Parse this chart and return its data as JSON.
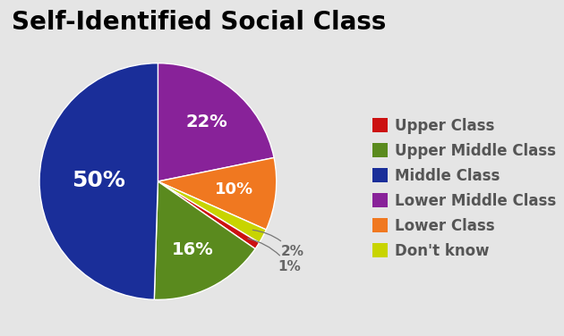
{
  "title": "Self-Identified Social Class",
  "title_fontsize": 20,
  "title_fontweight": "bold",
  "categories": [
    "Upper Class",
    "Upper Middle Class",
    "Middle Class",
    "Lower Middle Class",
    "Lower Class",
    "Don't know"
  ],
  "legend_colors": [
    "#cc1111",
    "#5a8a1e",
    "#1a2e99",
    "#882299",
    "#f07820",
    "#c8d400"
  ],
  "pie_order": [
    "Lower Middle Class",
    "Lower Class",
    "Don't know",
    "Upper Class",
    "Upper Middle Class",
    "Middle Class"
  ],
  "pie_values": [
    22,
    10,
    2,
    1,
    16,
    50
  ],
  "pie_colors": [
    "#882299",
    "#f07820",
    "#c8d400",
    "#cc1111",
    "#5a8a1e",
    "#1a2e99"
  ],
  "startangle": 90,
  "counterclock": false,
  "background_color": "#e5e5e5",
  "legend_text_color": "#555555",
  "legend_fontsize": 12,
  "pie_labels": [
    {
      "text": "22%",
      "inside": true,
      "r": 0.65,
      "color": "white",
      "fontsize": 14,
      "fontweight": "bold"
    },
    {
      "text": "10%",
      "inside": true,
      "r": 0.65,
      "color": "white",
      "fontsize": 13,
      "fontweight": "bold"
    },
    {
      "text": "2%",
      "inside": false,
      "r": 1.28,
      "color": "#666666",
      "fontsize": 11,
      "fontweight": "bold"
    },
    {
      "text": "1%",
      "inside": false,
      "r": 1.32,
      "color": "#666666",
      "fontsize": 11,
      "fontweight": "bold"
    },
    {
      "text": "16%",
      "inside": true,
      "r": 0.65,
      "color": "white",
      "fontsize": 14,
      "fontweight": "bold"
    },
    {
      "text": "50%",
      "inside": true,
      "r": 0.5,
      "color": "white",
      "fontsize": 18,
      "fontweight": "bold"
    }
  ]
}
